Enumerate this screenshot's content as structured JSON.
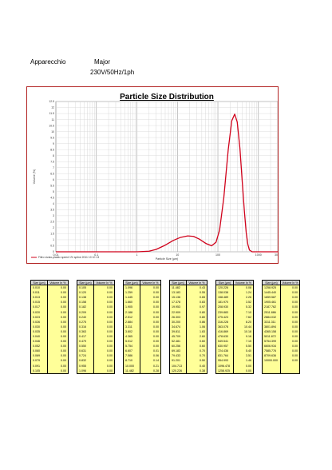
{
  "header": {
    "label": "Apparecchio",
    "model": "Major",
    "power": "230V/50Hz/1ph"
  },
  "chart_data": {
    "type": "line",
    "title": "Particle Size Distribution",
    "xlabel": "Particle Size (µm)",
    "ylabel": "Volume (%)",
    "xscale": "log",
    "xlim": [
      0.01,
      3000
    ],
    "ylim": [
      0,
      12.5
    ],
    "xticks": [
      "0.01",
      "0.1",
      "1",
      "10",
      "100",
      "1000",
      "3000"
    ],
    "yticks": [
      "0",
      "0.5",
      "1",
      "1.5",
      "2",
      "2.5",
      "3",
      "3.5",
      "4",
      "4.5",
      "5",
      "5.5",
      "6",
      "6.5",
      "7",
      "7.5",
      "8",
      "8.5",
      "9",
      "9.5",
      "10",
      "10.5",
      "11",
      "11.5",
      "12",
      "12.5"
    ],
    "grid": true,
    "legend_position": "bottom-left",
    "color": "#d0021b",
    "series": [
      {
        "name": "Filtro vivaio-plastic speed 1% spline 2011 10 10 13",
        "x": [
          0.01,
          1,
          2,
          3,
          5,
          8,
          12,
          18,
          25,
          35,
          50,
          70,
          90,
          110,
          140,
          180,
          220,
          260,
          300,
          350,
          400,
          450,
          500,
          550,
          600,
          700,
          3000
        ],
        "y": [
          0,
          0,
          0.05,
          0.2,
          0.55,
          0.95,
          1.2,
          1.32,
          1.28,
          1.05,
          0.7,
          0.5,
          0.8,
          1.8,
          4.5,
          8.5,
          10.9,
          11.45,
          10.8,
          8.6,
          5.8,
          3.4,
          1.6,
          0.6,
          0.15,
          0,
          0
        ]
      }
    ]
  },
  "tables": [
    {
      "headers": [
        "Size (µm)",
        "Volume In %"
      ],
      "rows": [
        [
          "0.010",
          "0.00"
        ],
        [
          "0.011",
          "0.00"
        ],
        [
          "0.013",
          "0.00"
        ],
        [
          "0.015",
          "0.00"
        ],
        [
          "0.017",
          "0.00"
        ],
        [
          "0.020",
          "0.00"
        ],
        [
          "0.023",
          "0.00"
        ],
        [
          "0.026",
          "0.00"
        ],
        [
          "0.030",
          "0.00"
        ],
        [
          "0.035",
          "0.00"
        ],
        [
          "0.040",
          "0.00"
        ],
        [
          "0.046",
          "0.00"
        ],
        [
          "0.052",
          "0.00"
        ],
        [
          "0.060",
          "0.00"
        ],
        [
          "0.069",
          "0.00"
        ],
        [
          "0.079",
          "0.00"
        ],
        [
          "0.091",
          "0.00"
        ],
        [
          "0.105",
          "0.00"
        ]
      ]
    },
    {
      "headers": [
        "Size (µm)",
        "Volume In %"
      ],
      "rows": [
        [
          "0.105",
          "0.00"
        ],
        [
          "0.120",
          "0.00"
        ],
        [
          "0.138",
          "0.00"
        ],
        [
          "0.158",
          "0.00"
        ],
        [
          "0.182",
          "0.00"
        ],
        [
          "0.209",
          "0.00"
        ],
        [
          "0.240",
          "0.00"
        ],
        [
          "0.275",
          "0.00"
        ],
        [
          "0.316",
          "0.00"
        ],
        [
          "0.363",
          "0.00"
        ],
        [
          "0.417",
          "0.00"
        ],
        [
          "0.479",
          "0.00"
        ],
        [
          "0.550",
          "0.00"
        ],
        [
          "0.631",
          "0.00"
        ],
        [
          "0.724",
          "0.00"
        ],
        [
          "0.832",
          "0.00"
        ],
        [
          "0.955",
          "0.00"
        ],
        [
          "1.096",
          "0.00"
        ]
      ]
    },
    {
      "headers": [
        "Size (µm)",
        "Volume In %"
      ],
      "rows": [
        [
          "1.096",
          "0.00"
        ],
        [
          "1.259",
          "0.00"
        ],
        [
          "1.445",
          "0.00"
        ],
        [
          "1.660",
          "0.00"
        ],
        [
          "1.905",
          "0.00"
        ],
        [
          "2.188",
          "0.00"
        ],
        [
          "2.512",
          "0.00"
        ],
        [
          "2.884",
          "0.00"
        ],
        [
          "3.311",
          "0.00"
        ],
        [
          "3.802",
          "0.00"
        ],
        [
          "4.365",
          "0.00"
        ],
        [
          "5.012",
          "0.00"
        ],
        [
          "5.754",
          "0.00"
        ],
        [
          "6.607",
          "0.01"
        ],
        [
          "7.586",
          "0.06"
        ],
        [
          "8.710",
          "0.14"
        ],
        [
          "10.000",
          "0.21"
        ],
        [
          "11.482",
          "0.28"
        ]
      ]
    },
    {
      "headers": [
        "Size (µm)",
        "Volume In %"
      ],
      "rows": [
        [
          "11.482",
          "0.43"
        ],
        [
          "13.183",
          "0.55"
        ],
        [
          "15.136",
          "0.65"
        ],
        [
          "17.378",
          "0.83"
        ],
        [
          "19.953",
          "0.97"
        ],
        [
          "22.909",
          "0.80"
        ],
        [
          "26.303",
          "0.80"
        ],
        [
          "30.200",
          "0.86"
        ],
        [
          "34.674",
          "1.06"
        ],
        [
          "39.811",
          "1.83"
        ],
        [
          "45.709",
          "2.60"
        ],
        [
          "52.481",
          "0.60"
        ],
        [
          "60.256",
          "0.60"
        ],
        [
          "69.183",
          "0.70"
        ],
        [
          "79.433",
          "0.70"
        ],
        [
          "91.201",
          "0.50"
        ],
        [
          "104.713",
          "0.40"
        ],
        [
          "120.226",
          "0.38"
        ]
      ]
    },
    {
      "headers": [
        "Size (µm)",
        "Volume In %"
      ],
      "rows": [
        [
          "120.226",
          "0.08"
        ],
        [
          "138.038",
          "1.24"
        ],
        [
          "158.489",
          "2.26"
        ],
        [
          "181.970",
          "3.52"
        ],
        [
          "208.930",
          "5.32"
        ],
        [
          "239.883",
          "7.10"
        ],
        [
          "275.423",
          "7.62"
        ],
        [
          "316.228",
          "8.20"
        ],
        [
          "363.078",
          "10.44"
        ],
        [
          "416.869",
          "10.18"
        ],
        [
          "478.630",
          "9.16"
        ],
        [
          "549.541",
          "7.15"
        ],
        [
          "630.957",
          "5.50"
        ],
        [
          "724.436",
          "5.40"
        ],
        [
          "831.764",
          "3.51"
        ],
        [
          "954.993",
          "1.46"
        ],
        [
          "1096.478",
          "0.00"
        ],
        [
          "1258.925",
          "0.00"
        ]
      ]
    },
    {
      "headers": [
        "Size (µm)",
        "Volume In %"
      ],
      "rows": [
        [
          "1258.925",
          "0.00"
        ],
        [
          "1445.440",
          "0.00"
        ],
        [
          "1659.587",
          "0.00"
        ],
        [
          "1905.461",
          "0.00"
        ],
        [
          "2187.762",
          "0.00"
        ],
        [
          "2511.886",
          "0.00"
        ],
        [
          "2884.032",
          "0.00"
        ],
        [
          "3311.311",
          "0.00"
        ],
        [
          "3801.894",
          "0.00"
        ],
        [
          "4365.158",
          "0.00"
        ],
        [
          "5011.872",
          "0.00"
        ],
        [
          "5754.399",
          "0.00"
        ],
        [
          "6606.934",
          "0.00"
        ],
        [
          "7585.776",
          "0.00"
        ],
        [
          "8709.636",
          "0.00"
        ],
        [
          "10000.000",
          "0.00"
        ],
        [
          "",
          ""
        ],
        [
          "",
          ""
        ]
      ]
    }
  ]
}
